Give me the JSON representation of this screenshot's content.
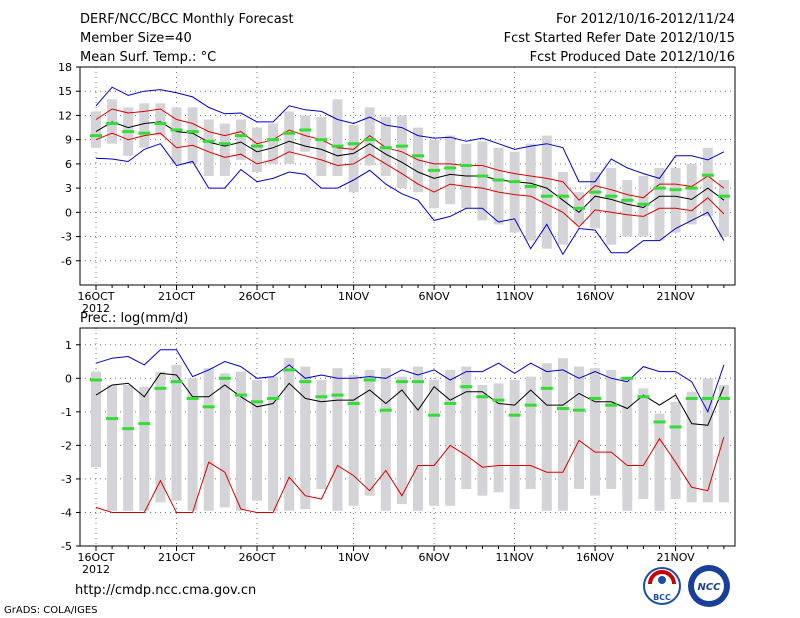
{
  "header": {
    "title": "DERF/NCC/BCC Monthly Forecast",
    "member_size": "Member Size=40",
    "variable": "Mean Surf. Temp.: °C",
    "period": "For 2012/10/16-2012/11/24",
    "refer_date": "Fcst Started Refer Date 2012/10/15",
    "produced_date": "Fcst Produced Date 2012/10/16"
  },
  "footer": {
    "url": "http://cmdp.ncc.cma.gov.cn",
    "grads": "GrADS: COLA/IGES",
    "logo_bcc": "BCC",
    "logo_ncc": "NCC"
  },
  "colors": {
    "box": "#d4d4d8",
    "max": "#0000cc",
    "spread": "#dd0000",
    "mean": "#000000",
    "obs": "#33dd33",
    "grid": "#777777"
  },
  "chart_data": [
    {
      "type": "line",
      "title": "Mean Surf. Temp.: °C",
      "x_labels": [
        "16OCT",
        "21OCT",
        "26OCT",
        "1NOV",
        "6NOV",
        "11NOV",
        "16NOV",
        "21NOV"
      ],
      "x_label_days": [
        1,
        6,
        11,
        17,
        22,
        27,
        32,
        37
      ],
      "year_label": "2012",
      "ylim": [
        -9,
        18
      ],
      "yticks": [
        -6,
        -3,
        0,
        3,
        6,
        9,
        12,
        15,
        18
      ],
      "days": 40,
      "series": [
        {
          "name": "max",
          "values": [
            13.2,
            15.5,
            14.5,
            15.0,
            15.2,
            14.8,
            14.3,
            13.0,
            12.2,
            12.3,
            11.2,
            11.2,
            13.2,
            12.7,
            12.5,
            11.5,
            11.0,
            11.8,
            10.8,
            10.5,
            9.5,
            9.2,
            9.3,
            8.8,
            9.2,
            8.5,
            7.8,
            8.2,
            8.5,
            8.0,
            3.8,
            3.8,
            6.6,
            5.5,
            4.8,
            4.2,
            7.0,
            7.0,
            6.5,
            7.5
          ]
        },
        {
          "name": "upper",
          "values": [
            11.5,
            12.8,
            12.3,
            12.5,
            12.8,
            11.5,
            11.0,
            10.0,
            9.5,
            10.0,
            8.5,
            9.0,
            10.2,
            9.5,
            9.0,
            8.0,
            7.8,
            9.5,
            8.0,
            7.5,
            6.5,
            6.0,
            6.0,
            5.8,
            5.8,
            5.2,
            4.8,
            4.5,
            4.2,
            3.8,
            1.5,
            3.3,
            2.8,
            2.2,
            1.8,
            3.5,
            3.5,
            3.2,
            4.5,
            3.0
          ]
        },
        {
          "name": "mean",
          "values": [
            10.0,
            11.2,
            10.5,
            11.0,
            11.2,
            10.0,
            9.8,
            8.7,
            8.2,
            8.7,
            7.5,
            8.0,
            8.8,
            8.2,
            7.8,
            7.0,
            7.3,
            8.5,
            7.2,
            6.2,
            5.0,
            4.2,
            4.7,
            4.5,
            4.5,
            4.0,
            3.8,
            3.6,
            3.0,
            1.5,
            0.0,
            2.0,
            1.6,
            1.0,
            0.6,
            2.0,
            2.0,
            1.6,
            3.0,
            1.5
          ]
        },
        {
          "name": "lower",
          "values": [
            9.0,
            9.8,
            9.0,
            9.5,
            9.8,
            8.0,
            8.3,
            7.5,
            6.8,
            7.2,
            6.0,
            6.5,
            7.5,
            7.0,
            6.5,
            5.8,
            6.0,
            7.2,
            6.0,
            4.8,
            3.5,
            2.5,
            3.5,
            3.2,
            3.0,
            2.5,
            2.2,
            2.0,
            1.0,
            0.0,
            -1.8,
            0.3,
            0.0,
            -0.3,
            -0.5,
            0.5,
            0.5,
            0.2,
            1.8,
            -0.2
          ]
        },
        {
          "name": "min",
          "values": [
            6.7,
            6.6,
            6.3,
            7.8,
            8.5,
            5.8,
            6.3,
            3.0,
            3.0,
            5.3,
            3.8,
            4.2,
            5.0,
            4.7,
            3.0,
            3.0,
            4.0,
            5.2,
            3.5,
            2.3,
            1.5,
            -1.0,
            -0.5,
            0.5,
            0.5,
            -1.2,
            -0.8,
            -4.5,
            -1.5,
            -5.2,
            -2.0,
            -2.2,
            -5.0,
            -5.0,
            -3.5,
            -3.5,
            -2.0,
            -1.0,
            0.0,
            -3.5
          ]
        },
        {
          "name": "observed",
          "values": [
            9.5,
            11.0,
            10.0,
            9.8,
            11.0,
            10.2,
            10.0,
            8.8,
            8.5,
            9.5,
            8.2,
            9.0,
            9.8,
            10.2,
            9.0,
            8.2,
            8.5,
            9.0,
            8.0,
            8.2,
            7.0,
            5.2,
            5.5,
            5.8,
            4.5,
            4.0,
            3.8,
            3.2,
            2.0,
            2.0,
            0.5,
            2.5,
            2.0,
            1.5,
            1.0,
            3.0,
            2.8,
            3.0,
            4.6,
            2.0
          ]
        },
        {
          "name": "box_top",
          "values": [
            12.5,
            14.0,
            13.0,
            13.5,
            13.5,
            13.0,
            13.0,
            11.5,
            11.0,
            11.5,
            10.5,
            11.0,
            12.5,
            12.0,
            11.8,
            14.0,
            10.8,
            13.0,
            11.8,
            12.0,
            10.5,
            9.0,
            9.5,
            8.5,
            8.8,
            8.0,
            7.5,
            8.5,
            9.5,
            5.0,
            2.5,
            5.0,
            5.5,
            4.0,
            4.5,
            5.5,
            5.5,
            6.0,
            8.0,
            4.0
          ]
        },
        {
          "name": "box_bottom",
          "values": [
            8.0,
            8.5,
            7.0,
            8.0,
            9.5,
            6.0,
            6.0,
            4.5,
            4.5,
            6.5,
            5.0,
            6.0,
            6.0,
            7.5,
            4.5,
            4.5,
            2.5,
            5.8,
            4.5,
            3.0,
            2.5,
            0.5,
            1.0,
            0.5,
            -1.0,
            -1.5,
            -2.5,
            -3.5,
            -4.5,
            -4.0,
            -1.5,
            -2.0,
            -4.0,
            -3.0,
            -3.0,
            -3.5,
            -2.5,
            -1.5,
            -0.5,
            -3.0
          ]
        }
      ]
    },
    {
      "type": "line",
      "title": "Prec.: log(mm/d)",
      "x_labels": [
        "16OCT",
        "21OCT",
        "26OCT",
        "1NOV",
        "6NOV",
        "11NOV",
        "16NOV",
        "21NOV"
      ],
      "x_label_days": [
        1,
        6,
        11,
        17,
        22,
        27,
        32,
        37
      ],
      "year_label": "2012",
      "ylim": [
        -5,
        1.5
      ],
      "yticks": [
        -5,
        -4,
        -3,
        -2,
        -1,
        0,
        1
      ],
      "days": 40,
      "series": [
        {
          "name": "max",
          "values": [
            0.45,
            0.6,
            0.65,
            0.4,
            0.85,
            0.85,
            0.05,
            0.25,
            0.5,
            0.35,
            0.0,
            0.05,
            0.4,
            0.0,
            0.1,
            0.0,
            0.0,
            0.05,
            0.0,
            0.25,
            0.1,
            0.25,
            -0.05,
            0.2,
            0.2,
            0.45,
            0.15,
            0.45,
            0.2,
            0.25,
            0.0,
            0.2,
            0.0,
            -0.1,
            0.35,
            0.2,
            0.2,
            -0.1,
            -1.0,
            0.4
          ]
        },
        {
          "name": "mean",
          "values": [
            -0.5,
            -0.2,
            -0.15,
            -0.55,
            0.15,
            0.1,
            -0.55,
            -0.55,
            -0.2,
            -0.55,
            -0.85,
            -0.75,
            -0.15,
            -0.6,
            -0.7,
            -0.65,
            -0.65,
            -0.35,
            -0.75,
            -0.35,
            -0.95,
            -0.25,
            -0.65,
            -0.4,
            -0.4,
            -0.75,
            -0.8,
            -0.35,
            -0.8,
            -0.8,
            -0.45,
            -0.7,
            -0.7,
            -0.9,
            -0.5,
            -0.8,
            -0.5,
            -1.35,
            -1.4,
            -0.25
          ]
        },
        {
          "name": "min",
          "values": [
            -3.85,
            -4.0,
            -4.0,
            -4.0,
            -3.05,
            -4.0,
            -4.0,
            -2.5,
            -2.8,
            -3.9,
            -4.0,
            -4.0,
            -2.95,
            -3.5,
            -3.6,
            -2.6,
            -2.9,
            -3.35,
            -2.75,
            -3.5,
            -2.6,
            -2.6,
            -2.0,
            -2.3,
            -2.65,
            -2.6,
            -2.6,
            -2.6,
            -2.8,
            -2.8,
            -1.85,
            -2.2,
            -2.2,
            -2.6,
            -2.6,
            -1.8,
            -2.5,
            -3.25,
            -3.35,
            -1.75
          ]
        },
        {
          "name": "observed",
          "values": [
            -0.05,
            -1.2,
            -1.5,
            -1.35,
            -0.3,
            -0.1,
            -0.6,
            -0.85,
            0.0,
            -0.5,
            -0.7,
            -0.6,
            0.25,
            -0.1,
            -0.55,
            -0.5,
            -0.75,
            -0.05,
            -0.95,
            -0.1,
            -0.1,
            -1.1,
            -0.75,
            -0.25,
            -0.55,
            -0.65,
            -1.1,
            -0.8,
            -0.3,
            -0.9,
            -0.95,
            -0.6,
            -0.8,
            0.0,
            -0.55,
            -1.3,
            -1.45,
            -0.6,
            -0.6,
            -0.6
          ]
        },
        {
          "name": "box_top",
          "values": [
            0.2,
            -0.2,
            -0.2,
            -0.25,
            0.2,
            0.4,
            0.0,
            0.3,
            0.15,
            0.2,
            -0.05,
            0.05,
            0.6,
            0.35,
            -0.05,
            0.3,
            0.1,
            0.25,
            0.3,
            0.05,
            0.35,
            -0.05,
            0.25,
            0.35,
            -0.2,
            -0.15,
            -0.05,
            0.05,
            0.45,
            0.6,
            0.35,
            0.3,
            0.25,
            0.0,
            -0.3,
            -1.05,
            -0.7,
            -0.4,
            0.0,
            -0.2
          ]
        },
        {
          "name": "box_bottom",
          "values": [
            -2.65,
            -3.95,
            -3.95,
            -3.95,
            -3.7,
            -3.65,
            -3.95,
            -3.95,
            -3.85,
            -3.95,
            -3.65,
            -3.95,
            -3.95,
            -3.9,
            -3.3,
            -3.95,
            -3.8,
            -3.5,
            -3.95,
            -3.75,
            -3.95,
            -3.8,
            -3.8,
            -3.3,
            -3.5,
            -3.4,
            -3.9,
            -3.3,
            -3.95,
            -3.95,
            -3.3,
            -3.5,
            -3.3,
            -3.95,
            -3.6,
            -3.95,
            -3.6,
            -3.7,
            -3.7,
            -3.7
          ]
        }
      ]
    }
  ]
}
